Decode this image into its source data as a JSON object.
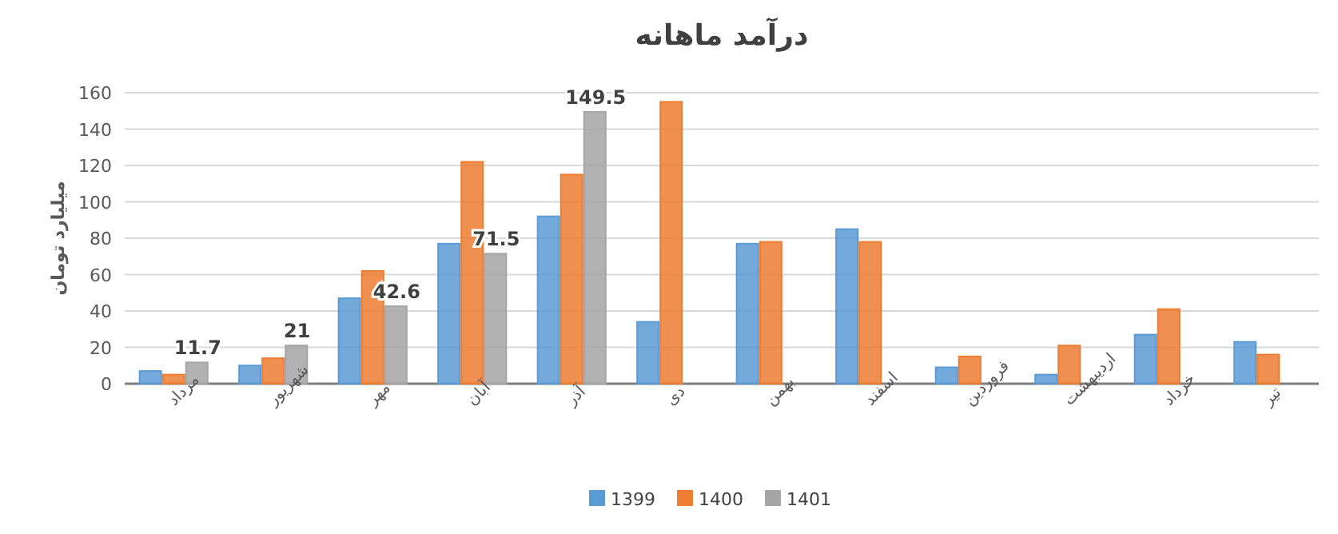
{
  "chart_data": {
    "type": "bar",
    "title": "درآمد ماهانه",
    "ylabel": "میلیارد تومان",
    "categories": [
      "مرداد",
      "شهریور",
      "مهر",
      "آبان",
      "آذر",
      "دی",
      "بهمن",
      "اسفند",
      "فروردین",
      "اردیبهشت",
      "خرداد",
      "تیر"
    ],
    "series": [
      {
        "name": "1399",
        "color": "#5b9bd5",
        "values": [
          7,
          10,
          47,
          77,
          92,
          34,
          77,
          85,
          9,
          5,
          27,
          23
        ]
      },
      {
        "name": "1400",
        "color": "#ed7d31",
        "values": [
          5,
          14,
          62,
          122,
          115,
          155,
          78,
          78,
          15,
          21,
          41,
          16
        ]
      },
      {
        "name": "1401",
        "color": "#a5a5a5",
        "values": [
          11.7,
          21,
          42.6,
          71.5,
          149.5,
          null,
          null,
          null,
          null,
          null,
          null,
          null
        ],
        "value_labels": [
          "11.7",
          "21",
          "42.6",
          "71.5",
          "149.5",
          null,
          null,
          null,
          null,
          null,
          null,
          null
        ]
      }
    ],
    "ylim": [
      0,
      160
    ],
    "yticks": [
      0,
      20,
      40,
      60,
      80,
      100,
      120,
      140,
      160
    ],
    "grid": "y",
    "legend": "bottom"
  }
}
